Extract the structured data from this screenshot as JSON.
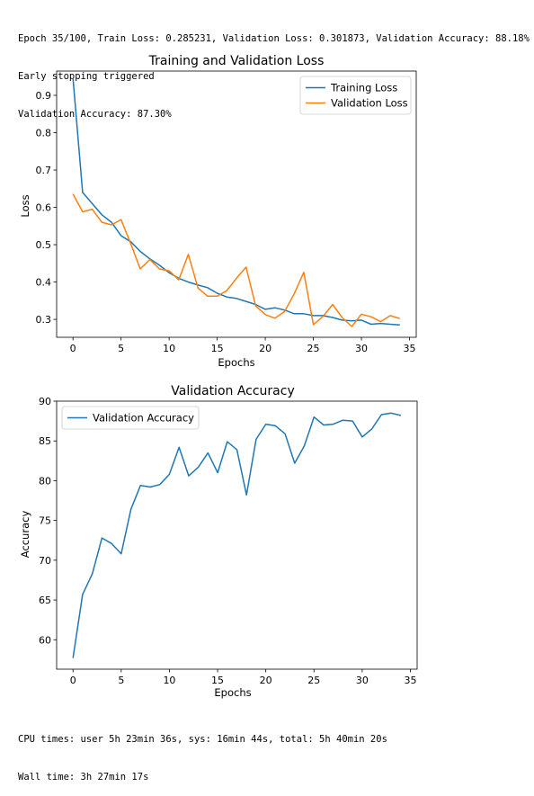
{
  "log_top": [
    "Epoch 35/100, Train Loss: 0.285231, Validation Loss: 0.301873, Validation Accuracy: 88.18%",
    "Early stopping triggered",
    "Validation Accuracy: 87.30%"
  ],
  "log_bottom": [
    "CPU times: user 5h 23min 36s, sys: 16min 44s, total: 5h 40min 20s",
    "Wall time: 3h 27min 17s"
  ],
  "colors": {
    "series1": "#1f77b4",
    "series2": "#ff7f0e"
  },
  "chart_data": [
    {
      "type": "line",
      "title": "Training and Validation Loss",
      "xlabel": "Epochs",
      "ylabel": "Loss",
      "xlim": [
        -1.7,
        35.7
      ],
      "ylim": [
        0.252,
        0.965
      ],
      "xticks": [
        0,
        5,
        10,
        15,
        20,
        25,
        30,
        35
      ],
      "yticks": [
        0.3,
        0.4,
        0.5,
        0.6,
        0.7,
        0.8,
        0.9
      ],
      "grid": false,
      "legend_position": "top-right",
      "x": [
        0,
        1,
        2,
        3,
        4,
        5,
        6,
        7,
        8,
        9,
        10,
        11,
        12,
        13,
        14,
        15,
        16,
        17,
        18,
        19,
        20,
        21,
        22,
        23,
        24,
        25,
        26,
        27,
        28,
        29,
        30,
        31,
        32,
        33,
        34
      ],
      "series": [
        {
          "name": "Training Loss",
          "color": "#1f77b4",
          "values": [
            0.946,
            0.64,
            0.61,
            0.58,
            0.56,
            0.524,
            0.508,
            0.482,
            0.462,
            0.445,
            0.425,
            0.41,
            0.4,
            0.392,
            0.385,
            0.37,
            0.36,
            0.356,
            0.348,
            0.34,
            0.327,
            0.331,
            0.325,
            0.315,
            0.315,
            0.31,
            0.31,
            0.305,
            0.298,
            0.296,
            0.298,
            0.287,
            0.289,
            0.287,
            0.285
          ]
        },
        {
          "name": "Validation Loss",
          "color": "#ff7f0e",
          "values": [
            0.636,
            0.588,
            0.595,
            0.56,
            0.553,
            0.567,
            0.503,
            0.435,
            0.46,
            0.435,
            0.43,
            0.406,
            0.474,
            0.384,
            0.362,
            0.362,
            0.377,
            0.41,
            0.44,
            0.336,
            0.313,
            0.303,
            0.321,
            0.368,
            0.426,
            0.286,
            0.308,
            0.34,
            0.305,
            0.281,
            0.314,
            0.307,
            0.294,
            0.31,
            0.302
          ]
        }
      ]
    },
    {
      "type": "line",
      "title": "Validation Accuracy",
      "xlabel": "Epochs",
      "ylabel": "Accuracy",
      "xlim": [
        -1.7,
        35.7
      ],
      "ylim": [
        56.3,
        90.0
      ],
      "xticks": [
        0,
        5,
        10,
        15,
        20,
        25,
        30,
        35
      ],
      "yticks": [
        60,
        65,
        70,
        75,
        80,
        85,
        90
      ],
      "grid": false,
      "legend_position": "top-left",
      "x": [
        0,
        1,
        2,
        3,
        4,
        5,
        6,
        7,
        8,
        9,
        10,
        11,
        12,
        13,
        14,
        15,
        16,
        17,
        18,
        19,
        20,
        21,
        22,
        23,
        24,
        25,
        26,
        27,
        28,
        29,
        30,
        31,
        32,
        33,
        34
      ],
      "series": [
        {
          "name": "Validation Accuracy",
          "color": "#1f77b4",
          "values": [
            57.7,
            65.7,
            68.3,
            72.8,
            72.1,
            70.8,
            76.4,
            79.4,
            79.2,
            79.5,
            80.8,
            84.2,
            80.6,
            81.7,
            83.5,
            81.0,
            84.9,
            83.9,
            78.2,
            85.2,
            87.1,
            86.9,
            85.9,
            82.2,
            84.4,
            88.0,
            87.0,
            87.1,
            87.6,
            87.5,
            85.5,
            86.5,
            88.3,
            88.5,
            88.2
          ]
        }
      ]
    }
  ]
}
